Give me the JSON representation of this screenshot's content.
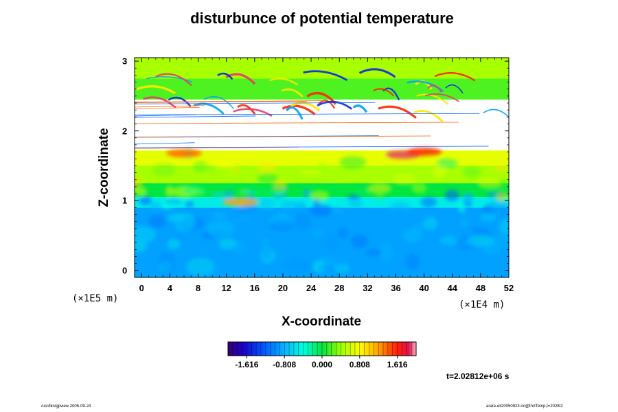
{
  "chart_data": {
    "type": "heatmap",
    "title": "disturbunce of potential temperature",
    "xlabel": "X-coordinate",
    "ylabel": "Z-coordinate",
    "x_unit": "(×1E4 m)",
    "y_unit": "(×1E5 m)",
    "x_ticks": [
      0,
      4,
      8,
      12,
      16,
      20,
      24,
      28,
      32,
      36,
      40,
      44,
      48,
      52
    ],
    "y_ticks": [
      0,
      1,
      2,
      3
    ],
    "xlim": [
      -1,
      52
    ],
    "ylim": [
      -0.1,
      3.05
    ],
    "colorbar": {
      "ticks": [
        "-1.616",
        "-0.808",
        "0.000",
        "0.808",
        "1.616"
      ],
      "range": [
        -2.02,
        2.02
      ],
      "colormap": "rainbow"
    },
    "field_bands": [
      {
        "z_from": -0.1,
        "z_to": 0.9,
        "value": -0.9
      },
      {
        "z_from": 0.9,
        "z_to": 1.05,
        "value": -0.5
      },
      {
        "z_from": 1.05,
        "z_to": 1.25,
        "value": 0.0
      },
      {
        "z_from": 1.25,
        "z_to": 1.5,
        "value": 0.45
      },
      {
        "z_from": 1.5,
        "z_to": 1.72,
        "value": 0.7
      },
      {
        "z_from": 1.72,
        "z_to": 2.45,
        "value": null
      },
      {
        "z_from": 2.45,
        "z_to": 2.75,
        "value": 0.2
      },
      {
        "z_from": 2.75,
        "z_to": 3.05,
        "value": 0.45
      }
    ],
    "time_label": "t=2.02812e+06 s"
  },
  "footer": {
    "left": "/usr/bin/gpview 2005-09-24",
    "right": "arare-ell20050923.nc@PotTemp,t=2028t2"
  }
}
